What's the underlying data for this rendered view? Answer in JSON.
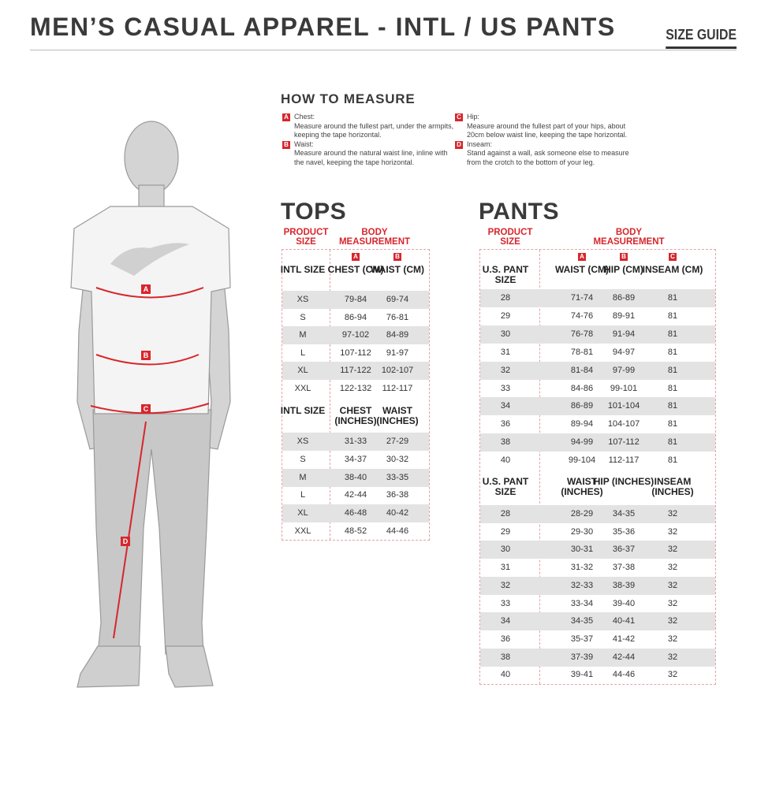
{
  "header": {
    "title": "MEN’S CASUAL APPAREL - INTL / US PANTS",
    "guide": "SIZE GUIDE"
  },
  "measure": {
    "title": "HOW TO MEASURE",
    "items": [
      {
        "letter": "A",
        "label": "Chest:",
        "text": "Measure around the fullest part, under the armpits, keeping the tape horizontal."
      },
      {
        "letter": "B",
        "label": "Waist:",
        "text": "Measure around the natural waist line, inline with the navel, keeping the tape horizontal."
      },
      {
        "letter": "C",
        "label": "Hip:",
        "text": "Measure around the fullest part of your hips, about 20cm below waist line, keeping the tape horizontal."
      },
      {
        "letter": "D",
        "label": "Inseam:",
        "text": "Stand against a wall, ask someone else to measure from the crotch to the bottom of your leg."
      }
    ]
  },
  "accent": "#d7262c",
  "tops": {
    "title": "TOPS",
    "product_size": "PRODUCT SIZE",
    "body_measurement": "BODY MEASUREMENT",
    "cm": {
      "headers": [
        "INTL SIZE",
        "CHEST (CM)",
        "WAIST (CM)"
      ],
      "letters": [
        "A",
        "B"
      ],
      "rows": [
        [
          "XS",
          "79-84",
          "69-74"
        ],
        [
          "S",
          "86-94",
          "76-81"
        ],
        [
          "M",
          "97-102",
          "84-89"
        ],
        [
          "L",
          "107-112",
          "91-97"
        ],
        [
          "XL",
          "117-122",
          "102-107"
        ],
        [
          "XXL",
          "122-132",
          "112-117"
        ]
      ]
    },
    "in": {
      "headers": [
        "INTL SIZE",
        "CHEST (INCHES)",
        "WAIST (INCHES)"
      ],
      "rows": [
        [
          "XS",
          "31-33",
          "27-29"
        ],
        [
          "S",
          "34-37",
          "30-32"
        ],
        [
          "M",
          "38-40",
          "33-35"
        ],
        [
          "L",
          "42-44",
          "36-38"
        ],
        [
          "XL",
          "46-48",
          "40-42"
        ],
        [
          "XXL",
          "48-52",
          "44-46"
        ]
      ]
    }
  },
  "pants": {
    "title": "PANTS",
    "product_size": "PRODUCT SIZE",
    "body_measurement": "BODY MEASUREMENT",
    "cm": {
      "headers": [
        "U.S. PANT SIZE",
        "WAIST (CM)",
        "HIP (CM)",
        "INSEAM (CM)"
      ],
      "letters": [
        "A",
        "B",
        "C"
      ],
      "rows": [
        [
          "28",
          "71-74",
          "86-89",
          "81"
        ],
        [
          "29",
          "74-76",
          "89-91",
          "81"
        ],
        [
          "30",
          "76-78",
          "91-94",
          "81"
        ],
        [
          "31",
          "78-81",
          "94-97",
          "81"
        ],
        [
          "32",
          "81-84",
          "97-99",
          "81"
        ],
        [
          "33",
          "84-86",
          "99-101",
          "81"
        ],
        [
          "34",
          "86-89",
          "101-104",
          "81"
        ],
        [
          "36",
          "89-94",
          "104-107",
          "81"
        ],
        [
          "38",
          "94-99",
          "107-112",
          "81"
        ],
        [
          "40",
          "99-104",
          "112-117",
          "81"
        ]
      ]
    },
    "in": {
      "headers": [
        "U.S. PANT SIZE",
        "WAIST (INCHES)",
        "HIP (INCHES)",
        "INSEAM (INCHES)"
      ],
      "rows": [
        [
          "28",
          "28-29",
          "34-35",
          "32"
        ],
        [
          "29",
          "29-30",
          "35-36",
          "32"
        ],
        [
          "30",
          "30-31",
          "36-37",
          "32"
        ],
        [
          "31",
          "31-32",
          "37-38",
          "32"
        ],
        [
          "32",
          "32-33",
          "38-39",
          "32"
        ],
        [
          "33",
          "33-34",
          "39-40",
          "32"
        ],
        [
          "34",
          "34-35",
          "40-41",
          "32"
        ],
        [
          "36",
          "35-37",
          "41-42",
          "32"
        ],
        [
          "38",
          "37-39",
          "42-44",
          "32"
        ],
        [
          "40",
          "39-41",
          "44-46",
          "32"
        ]
      ]
    }
  },
  "figure": {
    "labels": [
      "A",
      "B",
      "C",
      "D"
    ]
  }
}
